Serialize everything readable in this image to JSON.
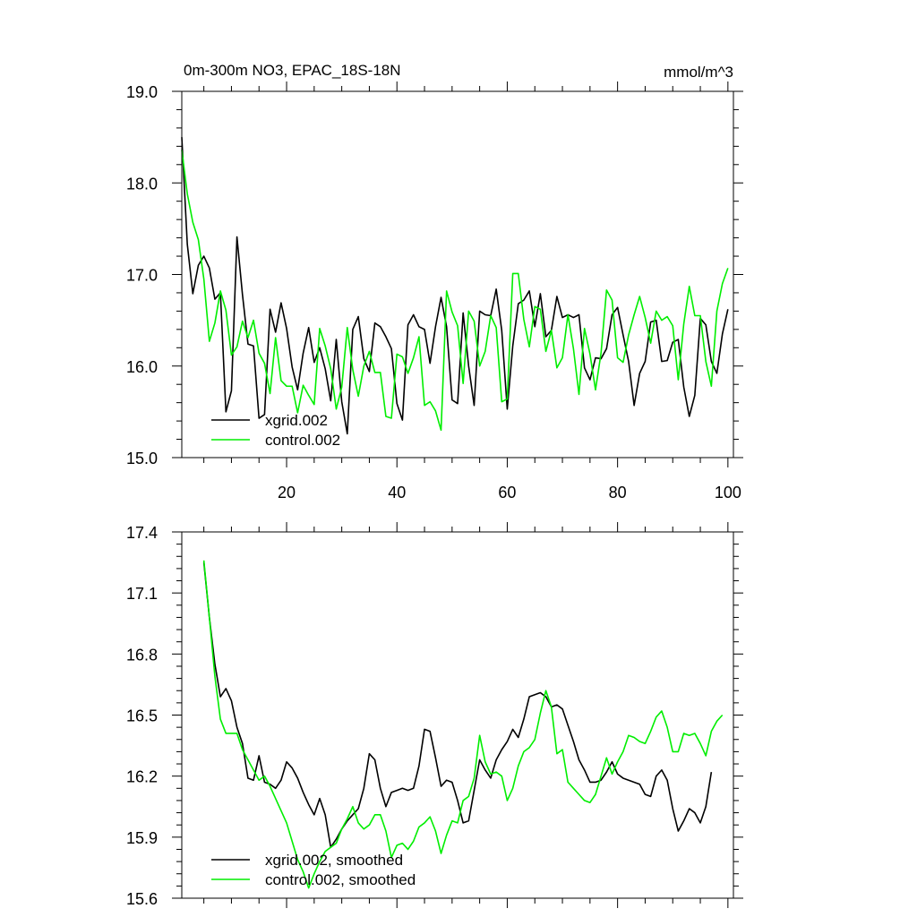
{
  "chart_data": [
    {
      "type": "line",
      "title": "0m-300m NO3, EPAC_18S-18N",
      "units": "mmol/m^3",
      "xlim": [
        1,
        101
      ],
      "ylim": [
        15.0,
        19.0
      ],
      "x_ticks": [
        20,
        40,
        60,
        80,
        100
      ],
      "y_ticks": [
        "15.0",
        "16.0",
        "17.0",
        "18.0",
        "19.0"
      ],
      "legend_position": "bottom-left",
      "grid": false,
      "x_start": 1,
      "series": [
        {
          "name": "xgrid.002",
          "color": "#000000",
          "values": [
            18.5,
            17.33,
            16.79,
            17.1,
            17.2,
            17.07,
            16.73,
            16.8,
            15.5,
            15.73,
            17.41,
            16.78,
            16.24,
            16.22,
            15.43,
            15.47,
            16.62,
            16.37,
            16.69,
            16.41,
            15.99,
            15.74,
            16.14,
            16.42,
            16.04,
            16.2,
            15.97,
            15.62,
            16.29,
            15.61,
            15.26,
            16.4,
            16.54,
            16.08,
            15.94,
            16.47,
            16.43,
            16.32,
            16.19,
            15.59,
            15.41,
            16.45,
            16.56,
            16.43,
            16.4,
            16.03,
            16.43,
            16.75,
            16.43,
            15.63,
            15.59,
            16.58,
            16.0,
            15.57,
            16.6,
            16.56,
            16.55,
            16.84,
            16.39,
            15.53,
            16.22,
            16.68,
            16.72,
            16.82,
            16.43,
            16.79,
            16.32,
            16.39,
            16.76,
            16.53,
            16.56,
            16.53,
            16.56,
            15.98,
            15.85,
            16.09,
            16.08,
            16.19,
            16.56,
            16.64,
            16.34,
            16.05,
            15.57,
            15.92,
            16.05,
            16.48,
            16.5,
            16.05,
            16.06,
            16.26,
            16.29,
            15.77,
            15.45,
            15.68,
            16.52,
            16.45,
            16.05,
            15.92,
            16.35,
            16.62
          ]
        },
        {
          "name": "control.002",
          "color": "#00ee00",
          "values": [
            18.36,
            17.88,
            17.57,
            17.38,
            16.95,
            16.27,
            16.47,
            16.82,
            16.61,
            16.12,
            16.21,
            16.49,
            16.31,
            16.5,
            16.14,
            16.03,
            15.7,
            16.31,
            15.84,
            15.78,
            15.78,
            15.49,
            15.79,
            15.68,
            15.58,
            16.41,
            16.22,
            15.97,
            15.53,
            15.77,
            16.42,
            15.96,
            15.67,
            16.0,
            16.16,
            15.93,
            15.93,
            15.45,
            15.43,
            16.13,
            16.1,
            15.92,
            16.09,
            16.32,
            15.57,
            15.61,
            15.51,
            15.3,
            16.82,
            16.59,
            16.44,
            15.81,
            16.6,
            16.49,
            16.0,
            16.16,
            16.55,
            16.42,
            15.61,
            15.64,
            17.01,
            17.01,
            16.51,
            16.21,
            16.65,
            16.62,
            16.16,
            16.39,
            15.98,
            16.09,
            16.56,
            16.19,
            15.69,
            16.41,
            16.13,
            15.74,
            16.14,
            16.83,
            16.72,
            16.09,
            16.04,
            16.34,
            16.56,
            16.76,
            16.53,
            16.25,
            16.6,
            16.5,
            16.54,
            16.44,
            15.85,
            16.46,
            16.87,
            16.55,
            16.55,
            16.05,
            15.78,
            16.6,
            16.9,
            17.07
          ]
        }
      ]
    },
    {
      "type": "line",
      "xlim": [
        1,
        101
      ],
      "ylim": [
        15.6,
        17.4
      ],
      "x_ticks": [
        20,
        40,
        60,
        80,
        100
      ],
      "y_ticks": [
        "15.6",
        "15.9",
        "16.2",
        "16.5",
        "16.8",
        "17.1",
        "17.4"
      ],
      "legend_position": "bottom-left",
      "grid": false,
      "x_start": 5,
      "series": [
        {
          "name": "xgrid.002, smoothed",
          "color": "#000000",
          "values": [
            17.25,
            16.98,
            16.75,
            16.59,
            16.63,
            16.57,
            16.44,
            16.36,
            16.19,
            16.18,
            16.3,
            16.17,
            16.16,
            16.14,
            16.18,
            16.27,
            16.24,
            16.19,
            16.12,
            16.06,
            16.01,
            16.09,
            16.01,
            15.85,
            15.89,
            15.94,
            15.98,
            16.01,
            16.04,
            16.14,
            16.31,
            16.28,
            16.14,
            16.05,
            16.12,
            16.13,
            16.14,
            16.13,
            16.14,
            16.25,
            16.43,
            16.42,
            16.29,
            16.15,
            16.18,
            16.17,
            16.08,
            15.97,
            15.98,
            16.13,
            16.28,
            16.23,
            16.19,
            16.28,
            16.33,
            16.37,
            16.43,
            16.39,
            16.48,
            16.59,
            16.6,
            16.61,
            16.59,
            16.54,
            16.55,
            16.53,
            16.45,
            16.37,
            16.28,
            16.23,
            16.17,
            16.17,
            16.18,
            16.22,
            16.27,
            16.21,
            16.19,
            16.18,
            16.17,
            16.16,
            16.11,
            16.1,
            16.2,
            16.23,
            16.18,
            16.04,
            15.93,
            15.98,
            16.04,
            16.02,
            15.97,
            16.05,
            16.22
          ]
        },
        {
          "name": "control.002, smoothed",
          "color": "#00ee00",
          "values": [
            17.26,
            16.98,
            16.69,
            16.48,
            16.41,
            16.41,
            16.41,
            16.33,
            16.28,
            16.23,
            16.18,
            16.2,
            16.15,
            16.09,
            16.03,
            15.97,
            15.88,
            15.79,
            15.73,
            15.65,
            15.72,
            15.78,
            15.83,
            15.85,
            15.87,
            15.94,
            15.99,
            16.05,
            15.97,
            15.94,
            15.96,
            16.01,
            16.01,
            15.93,
            15.8,
            15.86,
            15.87,
            15.84,
            15.88,
            15.95,
            15.97,
            16.0,
            15.93,
            15.82,
            15.91,
            15.98,
            15.97,
            16.08,
            16.1,
            16.19,
            16.4,
            16.27,
            16.21,
            16.22,
            16.2,
            16.08,
            16.14,
            16.25,
            16.32,
            16.34,
            16.38,
            16.51,
            16.62,
            16.54,
            16.31,
            16.33,
            16.17,
            16.14,
            16.11,
            16.08,
            16.07,
            16.11,
            16.2,
            16.29,
            16.21,
            16.27,
            16.32,
            16.4,
            16.39,
            16.37,
            16.36,
            16.42,
            16.49,
            16.52,
            16.44,
            16.32,
            16.32,
            16.41,
            16.4,
            16.41,
            16.36,
            16.3,
            16.42,
            16.47,
            16.5
          ]
        }
      ]
    }
  ]
}
